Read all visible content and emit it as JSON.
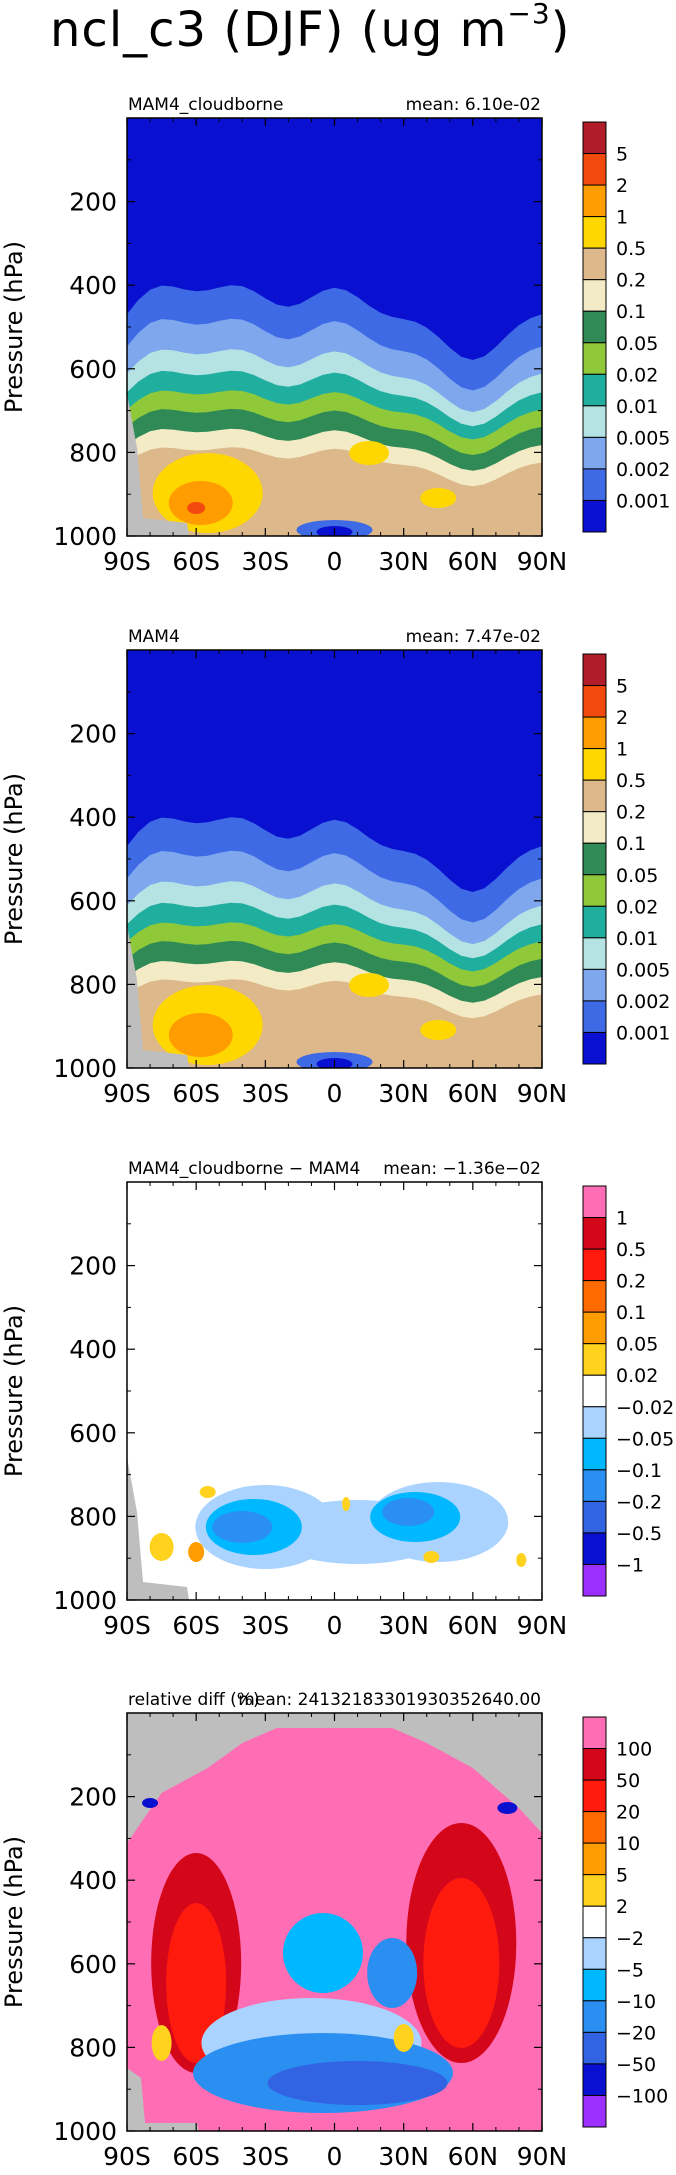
{
  "page_title": {
    "var": "ncl_c3 (DJF) (ug m",
    "sup": "−3",
    "close": ")"
  },
  "chart_data": [
    {
      "type": "contour",
      "title_left": "MAM4_cloudborne",
      "title_right": "mean: 6.10e-02",
      "ylabel": "Pressure (hPa)",
      "xticks": [
        "90S",
        "60S",
        "30S",
        "0",
        "30N",
        "60N",
        "90N"
      ],
      "yticks": [
        "200",
        "400",
        "600",
        "800",
        "1000"
      ],
      "ytick_values": [
        200,
        400,
        600,
        800,
        1000
      ],
      "ylim": [
        1000,
        0
      ],
      "xlim": [
        -90,
        90
      ],
      "levels": [
        "5",
        "2",
        "1",
        "0.5",
        "0.2",
        "0.1",
        "0.05",
        "0.02",
        "0.01",
        "0.005",
        "0.002",
        "0.001"
      ],
      "colors": [
        "#b01c2a",
        "#f24a0e",
        "#ff9d00",
        "#ffd700",
        "#ddb88a",
        "#f3ebc5",
        "#2f8a55",
        "#8fc93a",
        "#20ae9f",
        "#b5e3e3",
        "#7fa7ee",
        "#3e6ae6",
        "#0a10cf"
      ]
    },
    {
      "type": "contour",
      "title_left": "MAM4",
      "title_right": "mean: 7.47e-02",
      "ylabel": "Pressure (hPa)",
      "xticks": [
        "90S",
        "60S",
        "30S",
        "0",
        "30N",
        "60N",
        "90N"
      ],
      "yticks": [
        "200",
        "400",
        "600",
        "800",
        "1000"
      ],
      "ytick_values": [
        200,
        400,
        600,
        800,
        1000
      ],
      "ylim": [
        1000,
        0
      ],
      "xlim": [
        -90,
        90
      ],
      "levels": [
        "5",
        "2",
        "1",
        "0.5",
        "0.2",
        "0.1",
        "0.05",
        "0.02",
        "0.01",
        "0.005",
        "0.002",
        "0.001"
      ],
      "colors": [
        "#b01c2a",
        "#f24a0e",
        "#ff9d00",
        "#ffd700",
        "#ddb88a",
        "#f3ebc5",
        "#2f8a55",
        "#8fc93a",
        "#20ae9f",
        "#b5e3e3",
        "#7fa7ee",
        "#3e6ae6",
        "#0a10cf"
      ]
    },
    {
      "type": "contour",
      "title_left": "MAM4_cloudborne − MAM4",
      "title_right": "mean: −1.36e−02",
      "ylabel": "Pressure (hPa)",
      "xticks": [
        "90S",
        "60S",
        "30S",
        "0",
        "30N",
        "60N",
        "90N"
      ],
      "yticks": [
        "200",
        "400",
        "600",
        "800",
        "1000"
      ],
      "ytick_values": [
        200,
        400,
        600,
        800,
        1000
      ],
      "ylim": [
        1000,
        0
      ],
      "xlim": [
        -90,
        90
      ],
      "levels": [
        "1",
        "0.5",
        "0.2",
        "0.1",
        "0.05",
        "0.02",
        "−0.02",
        "−0.05",
        "−0.1",
        "−0.2",
        "−0.5",
        "−1"
      ],
      "colors": [
        "#ff6eb4",
        "#d4061a",
        "#ff1a0e",
        "#ff6a00",
        "#ff9d00",
        "#ffd21e",
        "#ffffff",
        "#aad4ff",
        "#00b8ff",
        "#2b8ff2",
        "#3263e3",
        "#0a10cf",
        "#9b30ff"
      ]
    },
    {
      "type": "contour",
      "title_left": "relative diff (%)",
      "title_right": "mean: 24132183301930352640.00",
      "ylabel": "Pressure (hPa)",
      "xticks": [
        "90S",
        "60S",
        "30S",
        "0",
        "30N",
        "60N",
        "90N"
      ],
      "yticks": [
        "200",
        "400",
        "600",
        "800",
        "1000"
      ],
      "ytick_values": [
        200,
        400,
        600,
        800,
        1000
      ],
      "ylim": [
        1000,
        0
      ],
      "xlim": [
        -90,
        90
      ],
      "levels": [
        "100",
        "50",
        "20",
        "10",
        "5",
        "2",
        "−2",
        "−5",
        "−10",
        "−20",
        "−50",
        "−100"
      ],
      "colors": [
        "#ff6eb4",
        "#d4061a",
        "#ff1a0e",
        "#ff6a00",
        "#ff9d00",
        "#ffd21e",
        "#ffffff",
        "#aad4ff",
        "#00b8ff",
        "#2b8ff2",
        "#3263e3",
        "#0a10cf",
        "#9b30ff"
      ]
    }
  ]
}
